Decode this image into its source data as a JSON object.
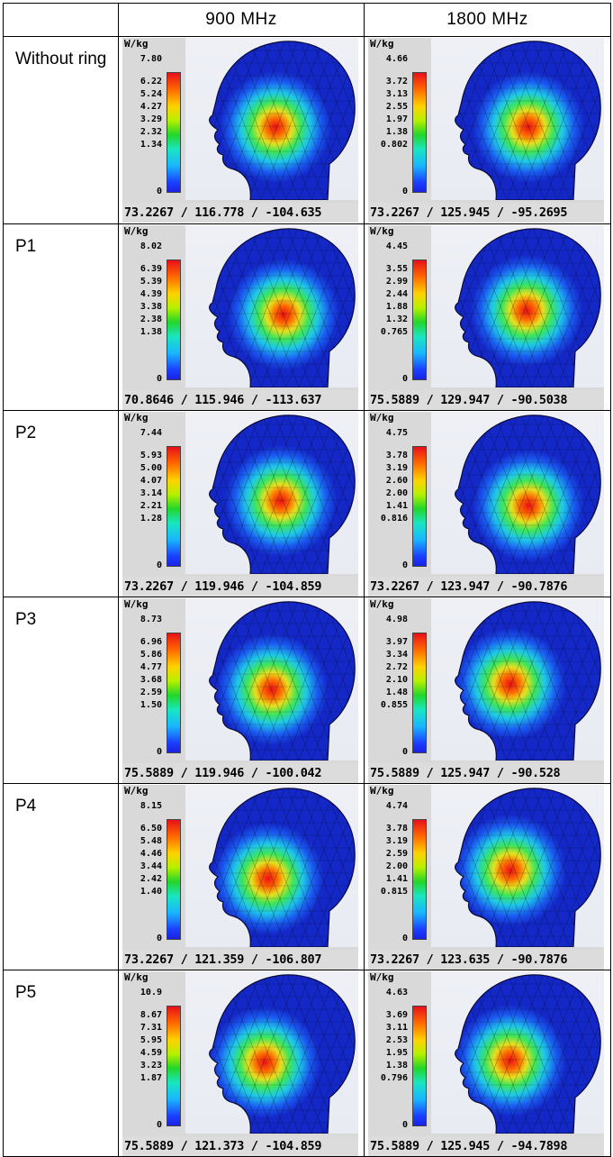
{
  "table": {
    "headers": [
      "",
      "900 MHz",
      "1800 MHz"
    ],
    "unit": "W/kg",
    "rows": [
      {
        "label": "Without ring",
        "cells": [
          {
            "ticks": [
              "7.80",
              "6.22",
              "5.24",
              "4.27",
              "3.29",
              "2.32",
              "1.34",
              "0"
            ],
            "coords": "73.2267 / 116.778 / -104.635"
          },
          {
            "ticks": [
              "4.66",
              "3.72",
              "3.13",
              "2.55",
              "1.97",
              "1.38",
              "0.802",
              "0"
            ],
            "coords": "73.2267 / 125.945 / -95.2695"
          }
        ]
      },
      {
        "label": "P1",
        "cells": [
          {
            "ticks": [
              "8.02",
              "6.39",
              "5.39",
              "4.39",
              "3.38",
              "2.38",
              "1.38",
              "0"
            ],
            "coords": "70.8646 / 115.946 / -113.637"
          },
          {
            "ticks": [
              "4.45",
              "3.55",
              "2.99",
              "2.44",
              "1.88",
              "1.32",
              "0.765",
              "0"
            ],
            "coords": "75.5889 / 129.947 / -90.5038"
          }
        ]
      },
      {
        "label": "P2",
        "cells": [
          {
            "ticks": [
              "7.44",
              "5.93",
              "5.00",
              "4.07",
              "3.14",
              "2.21",
              "1.28",
              "0"
            ],
            "coords": "73.2267 / 119.946 / -104.859"
          },
          {
            "ticks": [
              "4.75",
              "3.78",
              "3.19",
              "2.60",
              "2.00",
              "1.41",
              "0.816",
              "0"
            ],
            "coords": "73.2267 / 123.947 / -90.7876"
          }
        ]
      },
      {
        "label": "P3",
        "cells": [
          {
            "ticks": [
              "8.73",
              "6.96",
              "5.86",
              "4.77",
              "3.68",
              "2.59",
              "1.50",
              "0"
            ],
            "coords": "75.5889 / 119.946 / -100.042"
          },
          {
            "ticks": [
              "4.98",
              "3.97",
              "3.34",
              "2.72",
              "2.10",
              "1.48",
              "0.855",
              "0"
            ],
            "coords": "75.5889 / 125.947 / -90.528"
          }
        ]
      },
      {
        "label": "P4",
        "cells": [
          {
            "ticks": [
              "8.15",
              "6.50",
              "5.48",
              "4.46",
              "3.44",
              "2.42",
              "1.40",
              "0"
            ],
            "coords": "73.2267 / 121.359 / -106.807"
          },
          {
            "ticks": [
              "4.74",
              "3.78",
              "3.19",
              "2.59",
              "2.00",
              "1.41",
              "0.815",
              "0"
            ],
            "coords": "73.2267 / 123.635 / -90.7876"
          }
        ]
      },
      {
        "label": "P5",
        "cells": [
          {
            "ticks": [
              "10.9",
              "8.67",
              "7.31",
              "5.95",
              "4.59",
              "3.23",
              "1.87",
              "0"
            ],
            "coords": "75.5889 / 121.373 / -104.859"
          },
          {
            "ticks": [
              "4.63",
              "3.69",
              "3.11",
              "2.53",
              "1.95",
              "1.38",
              "0.796",
              "0"
            ],
            "coords": "75.5889 / 125.945 / -94.7898"
          }
        ]
      }
    ]
  }
}
